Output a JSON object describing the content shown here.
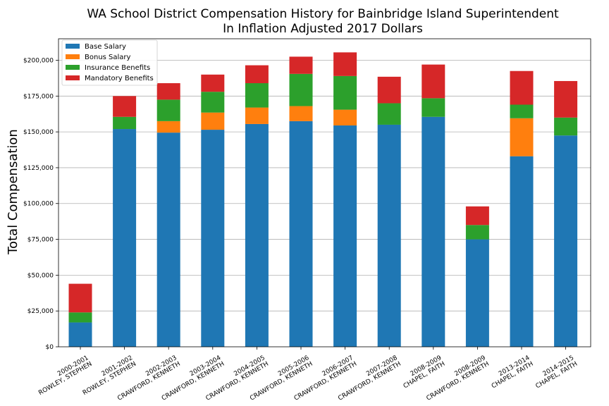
{
  "chart_data": {
    "type": "bar",
    "stacked": true,
    "title": "WA School District Compensation History for Bainbridge Island Superintendent",
    "subtitle": "In Inflation Adjusted 2017 Dollars",
    "xlabel": "",
    "ylabel": "Total Compensation",
    "ylim": [
      0,
      215000
    ],
    "yticks": [
      "$0",
      "$25,000",
      "$50,000",
      "$75,000",
      "$100,000",
      "$125,000",
      "$150,000",
      "$175,000",
      "$200,000"
    ],
    "grid": "horizontal",
    "legend_position": "top-left",
    "categories": [
      [
        "2000-2001",
        "ROWLEY, STEPHEN"
      ],
      [
        "2001-2002",
        "ROWLEY, STEPHEN"
      ],
      [
        "2002-2003",
        "CRAWFORD, KENNETH"
      ],
      [
        "2003-2004",
        "CRAWFORD, KENNETH"
      ],
      [
        "2004-2005",
        "CRAWFORD, KENNETH"
      ],
      [
        "2005-2006",
        "CRAWFORD, KENNETH"
      ],
      [
        "2006-2007",
        "CRAWFORD, KENNETH"
      ],
      [
        "2007-2008",
        "CRAWFORD, KENNETH"
      ],
      [
        "2008-2009",
        "CHAPEL, FAITH"
      ],
      [
        "2008-2009",
        "CRAWFORD, KENNETH"
      ],
      [
        "2013-2014",
        "CHAPEL, FAITH"
      ],
      [
        "2014-2015",
        "CHAPEL, FAITH"
      ]
    ],
    "series": [
      {
        "name": "Base Salary",
        "color": "#1f77b4",
        "values": [
          17000,
          152000,
          149500,
          151500,
          155500,
          157500,
          154500,
          155000,
          160500,
          75000,
          133000,
          147500
        ]
      },
      {
        "name": "Bonus Salary",
        "color": "#ff7f0e",
        "values": [
          0,
          0,
          8000,
          12000,
          11500,
          10500,
          11000,
          0,
          0,
          0,
          26500,
          0
        ]
      },
      {
        "name": "Insurance Benefits",
        "color": "#2ca02c",
        "values": [
          7000,
          8500,
          15000,
          14500,
          17000,
          22500,
          23500,
          15000,
          13000,
          10000,
          9500,
          12500
        ]
      },
      {
        "name": "Mandatory Benefits",
        "color": "#d62728",
        "values": [
          20000,
          14500,
          11500,
          12000,
          12500,
          12000,
          16500,
          18500,
          23500,
          13000,
          23500,
          25500
        ]
      }
    ]
  }
}
